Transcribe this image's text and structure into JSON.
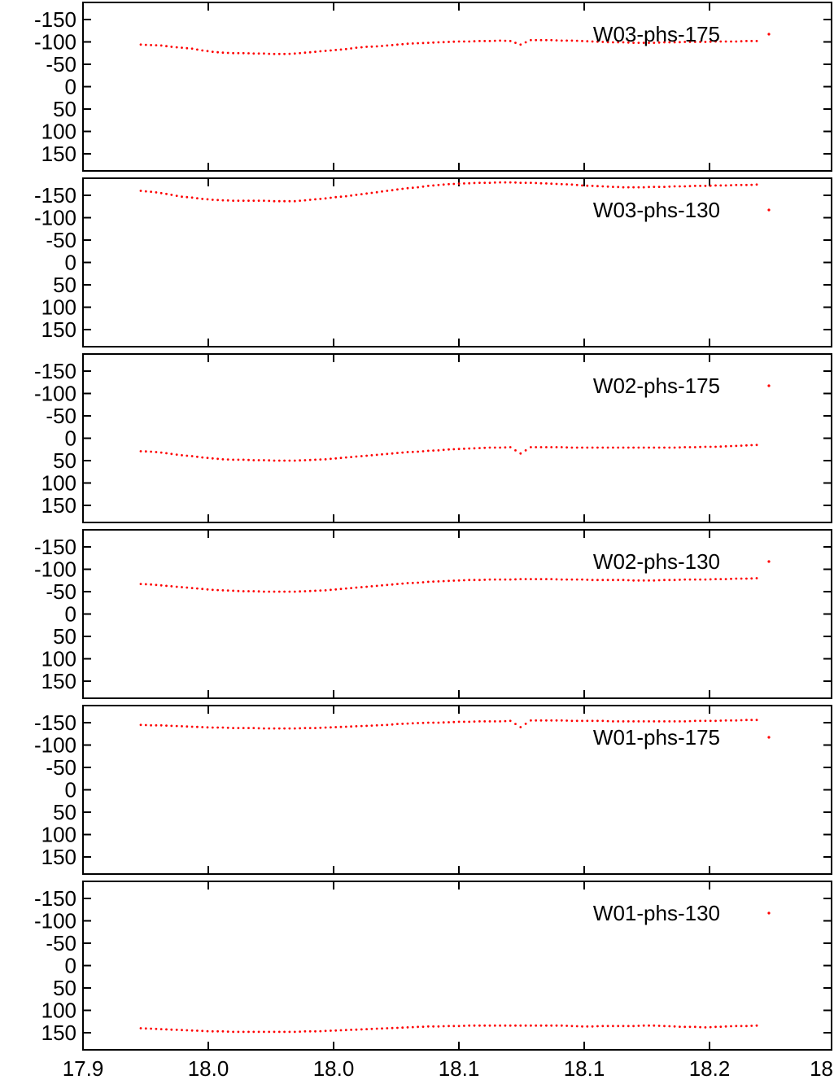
{
  "colors": {
    "series": "#ff0000",
    "frame": "#000000"
  },
  "chart_data": [
    {
      "type": "scatter",
      "series": [
        {
          "name": "W03-phs-175",
          "x_start": 17.9479,
          "x_end": 18.2427,
          "values": [
            -94,
            -93,
            -92,
            -89,
            -87,
            -85,
            -81,
            -78,
            -76,
            -75,
            -75,
            -74,
            -74,
            -73,
            -73,
            -74,
            -76,
            -78,
            -80,
            -82,
            -84,
            -87,
            -89,
            -90,
            -92,
            -94,
            -96,
            -97,
            -98,
            -99,
            -100,
            -101,
            -101,
            -102,
            -102,
            -103,
            -102,
            -94,
            -104,
            -104,
            -104,
            -103,
            -103,
            -102,
            -101,
            -100,
            -99,
            -99,
            -98,
            -98,
            -98,
            -99,
            -99,
            -100,
            -100,
            -100,
            -101,
            -101,
            -101,
            -102,
            -102
          ]
        }
      ],
      "x_ticks": [
        "17.9",
        "18.0",
        "18.0",
        "18.1",
        "18.1",
        "18.2",
        "18"
      ],
      "y_ticks": [
        "-150",
        "-100",
        "-50",
        "0",
        "50",
        "100",
        "150"
      ],
      "ylim": [
        -175,
        180
      ],
      "y_reversed": true,
      "legend": "top-right"
    },
    {
      "type": "scatter",
      "series": [
        {
          "name": "W03-phs-130",
          "x_start": 17.9479,
          "x_end": 18.2427,
          "values": [
            -160,
            -158,
            -155,
            -151,
            -147,
            -145,
            -142,
            -140,
            -139,
            -138,
            -138,
            -138,
            -138,
            -137,
            -137,
            -137,
            -139,
            -141,
            -143,
            -146,
            -148,
            -151,
            -154,
            -157,
            -160,
            -163,
            -166,
            -168,
            -171,
            -173,
            -175,
            -176,
            -177,
            -178,
            -178,
            -179,
            -179,
            -178,
            -178,
            -177,
            -176,
            -175,
            -174,
            -172,
            -171,
            -170,
            -169,
            -168,
            -168,
            -168,
            -169,
            -169,
            -170,
            -170,
            -171,
            -171,
            -172,
            -172,
            -173,
            -173,
            -174
          ]
        }
      ],
      "x_ticks": [
        "17.9",
        "18.0",
        "18.0",
        "18.1",
        "18.1",
        "18.2",
        "18"
      ],
      "y_ticks": [
        "-150",
        "-100",
        "-50",
        "0",
        "50",
        "100",
        "150"
      ],
      "ylim": [
        -175,
        180
      ],
      "y_reversed": true,
      "legend": "top-right"
    },
    {
      "type": "scatter",
      "series": [
        {
          "name": "W02-phs-175",
          "x_start": 17.9479,
          "x_end": 18.2427,
          "values": [
            29,
            30,
            32,
            35,
            38,
            40,
            43,
            45,
            47,
            48,
            48,
            49,
            49,
            50,
            50,
            50,
            49,
            48,
            47,
            45,
            43,
            41,
            39,
            37,
            35,
            33,
            31,
            30,
            28,
            27,
            25,
            24,
            23,
            22,
            21,
            21,
            20,
            34,
            20,
            20,
            20,
            20,
            21,
            21,
            21,
            21,
            21,
            21,
            21,
            21,
            21,
            21,
            21,
            20,
            20,
            19,
            19,
            18,
            17,
            16,
            15
          ]
        }
      ],
      "x_ticks": [
        "17.9",
        "18.0",
        "18.0",
        "18.1",
        "18.1",
        "18.2",
        "18"
      ],
      "y_ticks": [
        "-150",
        "-100",
        "-50",
        "0",
        "50",
        "100",
        "150"
      ],
      "ylim": [
        -175,
        180
      ],
      "y_reversed": true,
      "legend": "top-right"
    },
    {
      "type": "scatter",
      "series": [
        {
          "name": "W02-phs-130",
          "x_start": 17.9479,
          "x_end": 18.2427,
          "values": [
            -67,
            -66,
            -64,
            -62,
            -60,
            -58,
            -56,
            -54,
            -53,
            -52,
            -51,
            -51,
            -50,
            -50,
            -50,
            -50,
            -51,
            -52,
            -53,
            -55,
            -57,
            -59,
            -61,
            -63,
            -65,
            -67,
            -69,
            -70,
            -72,
            -73,
            -74,
            -75,
            -76,
            -76,
            -77,
            -77,
            -77,
            -78,
            -78,
            -78,
            -78,
            -77,
            -77,
            -77,
            -76,
            -76,
            -76,
            -76,
            -75,
            -75,
            -75,
            -76,
            -76,
            -77,
            -77,
            -77,
            -78,
            -78,
            -79,
            -79,
            -80
          ]
        }
      ],
      "x_ticks": [
        "17.9",
        "18.0",
        "18.0",
        "18.1",
        "18.1",
        "18.2",
        "18"
      ],
      "y_ticks": [
        "-150",
        "-100",
        "-50",
        "0",
        "50",
        "100",
        "150"
      ],
      "ylim": [
        -175,
        180
      ],
      "y_reversed": true,
      "legend": "top-right"
    },
    {
      "type": "scatter",
      "series": [
        {
          "name": "W01-phs-175",
          "x_start": 17.9479,
          "x_end": 18.2427,
          "values": [
            -145,
            -144,
            -144,
            -143,
            -142,
            -141,
            -140,
            -139,
            -139,
            -138,
            -138,
            -138,
            -137,
            -137,
            -137,
            -137,
            -138,
            -138,
            -139,
            -140,
            -141,
            -142,
            -143,
            -144,
            -145,
            -147,
            -148,
            -149,
            -150,
            -150,
            -151,
            -152,
            -152,
            -153,
            -153,
            -153,
            -154,
            -140,
            -155,
            -155,
            -155,
            -155,
            -154,
            -154,
            -154,
            -154,
            -153,
            -153,
            -153,
            -153,
            -153,
            -153,
            -153,
            -153,
            -154,
            -154,
            -154,
            -155,
            -155,
            -156,
            -156
          ]
        }
      ],
      "x_ticks": [
        "17.9",
        "18.0",
        "18.0",
        "18.1",
        "18.1",
        "18.2",
        "18"
      ],
      "y_ticks": [
        "-150",
        "-100",
        "-50",
        "0",
        "50",
        "100",
        "150"
      ],
      "ylim": [
        -175,
        180
      ],
      "y_reversed": true,
      "legend": "top-right"
    },
    {
      "type": "scatter",
      "series": [
        {
          "name": "W01-phs-130",
          "x_start": 17.9479,
          "x_end": 18.2427,
          "values": [
            140,
            141,
            142,
            143,
            144,
            145,
            146,
            147,
            147,
            148,
            148,
            148,
            148,
            148,
            148,
            148,
            147,
            147,
            146,
            145,
            144,
            143,
            142,
            141,
            140,
            139,
            138,
            137,
            136,
            136,
            135,
            135,
            134,
            134,
            134,
            134,
            134,
            134,
            134,
            134,
            134,
            134,
            135,
            136,
            136,
            135,
            135,
            135,
            135,
            134,
            134,
            135,
            136,
            137,
            137,
            138,
            137,
            136,
            135,
            135,
            134
          ]
        }
      ],
      "x_ticks": [
        "17.9",
        "18.0",
        "18.0",
        "18.1",
        "18.1",
        "18.2",
        "18"
      ],
      "y_ticks": [
        "-150",
        "-100",
        "-50",
        "0",
        "50",
        "100",
        "150"
      ],
      "ylim": [
        -175,
        180
      ],
      "y_reversed": true,
      "legend": "top-right"
    }
  ]
}
